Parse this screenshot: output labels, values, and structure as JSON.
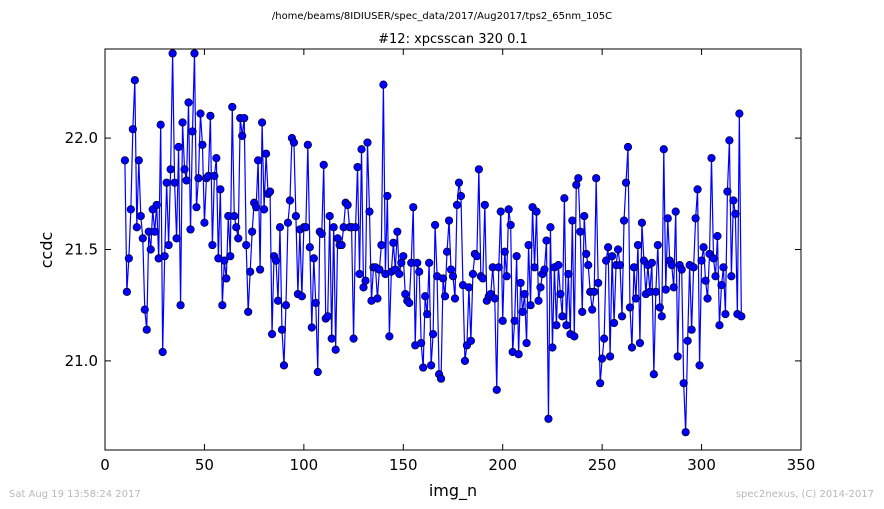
{
  "chart_data": {
    "type": "line",
    "suptitle": "/home/beams/8IDIUSER/spec_data/2017/Aug2017/tps2_65nm_105C",
    "title": "#12: xpcsscan 320 0.1",
    "xlabel": "img_n",
    "ylabel": "ccdc",
    "xlim": [
      0,
      350
    ],
    "ylim": [
      20.6,
      22.4
    ],
    "xticks": [
      0,
      50,
      100,
      150,
      200,
      250,
      300,
      350
    ],
    "yticks": [
      21.0,
      21.5,
      22.0
    ],
    "grid": false,
    "legend": "none",
    "marker": "circle",
    "x_start": 10,
    "line_color": "#0000ff",
    "series": [
      {
        "values": [
          21.9,
          21.31,
          21.46,
          21.68,
          22.04,
          22.26,
          21.6,
          21.9,
          21.65,
          21.55,
          21.23,
          21.14,
          21.58,
          21.5,
          21.68,
          21.58,
          21.7,
          21.46,
          22.06,
          21.04,
          21.47,
          21.8,
          21.52,
          21.86,
          22.38,
          21.8,
          21.55,
          21.96,
          21.25,
          22.07,
          21.86,
          21.81,
          22.16,
          21.59,
          22.03,
          22.38,
          21.69,
          21.82,
          22.11,
          21.97,
          21.62,
          21.82,
          21.83,
          22.1,
          21.52,
          21.83,
          21.91,
          21.46,
          21.77,
          21.25,
          21.45,
          21.37,
          21.65,
          21.47,
          22.14,
          21.65,
          21.6,
          21.55,
          22.09,
          22.01,
          22.09,
          21.52,
          21.22,
          21.4,
          21.58,
          21.71,
          21.69,
          21.9,
          21.41,
          22.07,
          21.68,
          21.93,
          21.75,
          21.76,
          21.12,
          21.47,
          21.45,
          21.27,
          21.6,
          21.14,
          20.98,
          21.25,
          21.62,
          21.72,
          22.0,
          21.98,
          21.65,
          21.3,
          21.59,
          21.29,
          21.6,
          21.6,
          21.97,
          21.51,
          21.15,
          21.46,
          21.26,
          20.95,
          21.58,
          21.57,
          21.88,
          21.19,
          21.2,
          21.65,
          21.1,
          21.6,
          21.05,
          21.55,
          21.52,
          21.52,
          21.6,
          21.71,
          21.7,
          21.6,
          21.6,
          21.1,
          21.6,
          21.87,
          21.39,
          21.95,
          21.33,
          21.36,
          21.98,
          21.67,
          21.27,
          21.42,
          21.42,
          21.28,
          21.41,
          21.52,
          22.24,
          21.39,
          21.74,
          21.11,
          21.4,
          21.53,
          21.41,
          21.58,
          21.39,
          21.44,
          21.47,
          21.3,
          21.27,
          21.26,
          21.44,
          21.69,
          21.07,
          21.44,
          21.4,
          21.08,
          20.97,
          21.29,
          21.21,
          21.44,
          20.98,
          21.12,
          21.61,
          21.38,
          20.94,
          20.92,
          21.37,
          21.29,
          21.49,
          21.63,
          21.41,
          21.38,
          21.28,
          21.7,
          21.8,
          21.74,
          21.34,
          21.0,
          21.07,
          21.33,
          21.09,
          21.39,
          21.48,
          21.47,
          21.86,
          21.38,
          21.37,
          21.7,
          21.27,
          21.29,
          21.3,
          21.42,
          21.28,
          20.87,
          21.42,
          21.67,
          21.18,
          21.49,
          21.38,
          21.68,
          21.61,
          21.04,
          21.18,
          21.47,
          21.03,
          21.35,
          21.22,
          21.3,
          21.08,
          21.52,
          21.25,
          21.69,
          21.42,
          21.67,
          21.27,
          21.33,
          21.39,
          21.41,
          21.54,
          20.74,
          21.6,
          21.06,
          21.42,
          21.16,
          21.43,
          21.3,
          21.2,
          21.73,
          21.16,
          21.39,
          21.12,
          21.63,
          21.11,
          21.79,
          21.82,
          21.58,
          21.22,
          21.65,
          21.48,
          21.43,
          21.31,
          21.23,
          21.31,
          21.82,
          21.35,
          20.9,
          21.01,
          21.1,
          21.45,
          21.51,
          21.02,
          21.47,
          21.17,
          21.43,
          21.5,
          21.43,
          21.2,
          21.63,
          21.8,
          21.96,
          21.24,
          21.06,
          21.42,
          21.28,
          21.52,
          21.08,
          21.62,
          21.45,
          21.3,
          21.43,
          21.31,
          21.44,
          20.94,
          21.31,
          21.52,
          21.24,
          21.2,
          21.95,
          21.32,
          21.64,
          21.45,
          21.43,
          21.33,
          21.67,
          21.02,
          21.43,
          21.41,
          20.9,
          20.68,
          21.09,
          21.43,
          21.14,
          21.42,
          21.64,
          21.77,
          20.98,
          21.45,
          21.51,
          21.36,
          21.28,
          21.48,
          21.91,
          21.46,
          21.38,
          21.56,
          21.16,
          21.34,
          21.42,
          21.21,
          21.76,
          21.99,
          21.38,
          21.72,
          21.66,
          21.21,
          22.11,
          21.2
        ]
      }
    ]
  },
  "footer": {
    "left": "Sat Aug 19 13:58:24 2017",
    "right": "spec2nexus, (C) 2014-2017"
  }
}
